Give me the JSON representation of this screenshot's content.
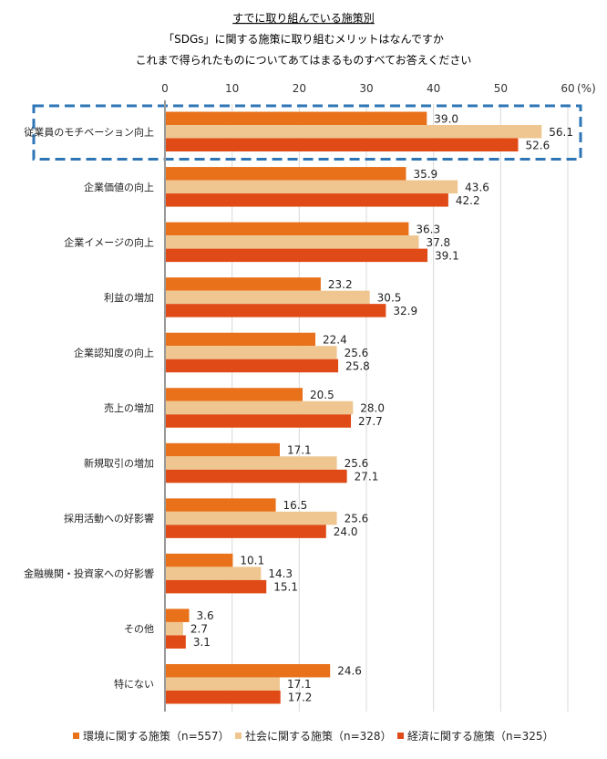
{
  "chart_data": {
    "type": "bar",
    "orientation": "horizontal",
    "title": "すでに取り組んでいる施策別",
    "subtitle_lines": [
      "「SDGs」に関する施策に取り組むメリットはなんですか",
      "これまで得られたものについてあてはまるものすべてお答えください"
    ],
    "unit_label": "(%)",
    "xlim": [
      0,
      60
    ],
    "ticks": [
      0,
      10,
      20,
      30,
      40,
      50,
      60
    ],
    "categories": [
      "従業員のモチベーション向上",
      "企業価値の向上",
      "企業イメージの向上",
      "利益の増加",
      "企業認知度の向上",
      "売上の増加",
      "新規取引の増加",
      "採用活動への好影響",
      "金融機関・投資家への好影響",
      "その他",
      "特にない"
    ],
    "series": [
      {
        "name": "環境に関する施策（n=557）",
        "color": "#E8711A",
        "values": [
          39.0,
          35.9,
          36.3,
          23.2,
          22.4,
          20.5,
          17.1,
          16.5,
          10.1,
          3.6,
          24.6
        ],
        "labels": [
          "39.0",
          "35.9",
          "36.3",
          "23.2",
          "22.4",
          "20.5",
          "17.1",
          "16.5",
          "10.1",
          "3.6",
          "24.6"
        ]
      },
      {
        "name": "社会に関する施策（n=328）",
        "color": "#EFC68F",
        "values": [
          56.1,
          43.6,
          37.8,
          30.5,
          25.6,
          28.0,
          25.6,
          25.6,
          14.3,
          2.7,
          17.1
        ],
        "labels": [
          "56.1",
          "43.6",
          "37.8",
          "30.5",
          "25.6",
          "28.0",
          "25.6",
          "25.6",
          "14.3",
          "2.7",
          "17.1"
        ]
      },
      {
        "name": "経済に関する施策（n=325）",
        "color": "#E04A16",
        "values": [
          52.6,
          42.2,
          39.1,
          32.9,
          25.8,
          27.7,
          27.1,
          24.0,
          15.1,
          3.1,
          17.2
        ],
        "labels": [
          "52.6",
          "42.2",
          "39.1",
          "32.9",
          "25.8",
          "27.7",
          "27.1",
          "24.0",
          "15.1",
          "3.1",
          "17.2"
        ]
      }
    ],
    "highlighted_category_index": 0,
    "highlight_color": "#2E75B6",
    "legend_position": "bottom"
  }
}
